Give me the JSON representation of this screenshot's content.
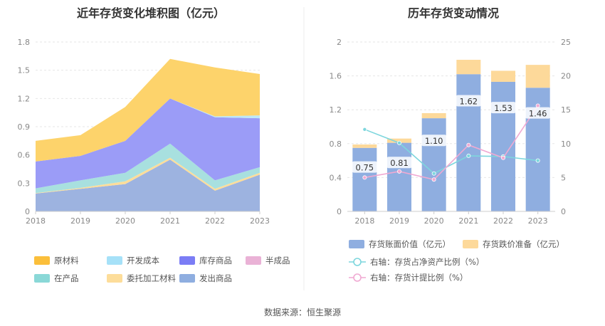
{
  "source": "数据来源：恒生聚源",
  "chart_data": [
    {
      "type": "area",
      "stacked": true,
      "title": "近年存货变化堆积图（亿元）",
      "categories": [
        "2018",
        "2019",
        "2020",
        "2021",
        "2022",
        "2023"
      ],
      "y_ticks": [
        "0",
        "0.3",
        "0.6",
        "0.9",
        "1.2",
        "1.5",
        "1.8"
      ],
      "ylim": [
        0,
        1.8
      ],
      "grid": "horizontal dashed",
      "legend_position": "bottom",
      "series": [
        {
          "name": "发出商品",
          "color": "#9db3e0",
          "values": [
            0.19,
            0.24,
            0.29,
            0.55,
            0.22,
            0.39
          ]
        },
        {
          "name": "委托加工材料",
          "color": "#fddd9a",
          "values": [
            0.005,
            0.01,
            0.03,
            0.02,
            0.02,
            0.02
          ]
        },
        {
          "name": "在产品",
          "color": "#a8e0df",
          "values": [
            0.05,
            0.08,
            0.09,
            0.15,
            0.09,
            0.06
          ]
        },
        {
          "name": "半成品",
          "color": "#f3b9dc",
          "values": [
            0.0,
            0.0,
            0.0,
            0.0,
            0.0,
            0.0
          ]
        },
        {
          "name": "库存商品",
          "color": "#9b9cf7",
          "values": [
            0.285,
            0.26,
            0.34,
            0.48,
            0.67,
            0.52
          ]
        },
        {
          "name": "开发成本",
          "color": "#bde8f7",
          "values": [
            0.0,
            0.0,
            0.0,
            0.0,
            0.01,
            0.03
          ]
        },
        {
          "name": "原材料",
          "color": "#fdd36b",
          "values": [
            0.22,
            0.22,
            0.36,
            0.42,
            0.52,
            0.44
          ]
        }
      ],
      "legend": [
        {
          "name": "原材料",
          "color": "#fbbf3b"
        },
        {
          "name": "开发成本",
          "color": "#a6e1f8"
        },
        {
          "name": "库存商品",
          "color": "#7b7df5"
        },
        {
          "name": "半成品",
          "color": "#eab2d6"
        },
        {
          "name": "在产品",
          "color": "#8ad8d7"
        },
        {
          "name": "委托加工材料",
          "color": "#fddd9a"
        },
        {
          "name": "发出商品",
          "color": "#8faee0"
        }
      ]
    },
    {
      "type": "bar",
      "stacked": true,
      "title": "历年存货变动情况",
      "categories": [
        "2018",
        "2019",
        "2020",
        "2021",
        "2022",
        "2023"
      ],
      "y_ticks_left": [
        "0",
        "0.4",
        "0.8",
        "1.2",
        "1.6",
        "2"
      ],
      "y_ticks_right": [
        "0",
        "5",
        "10",
        "15",
        "20",
        "25"
      ],
      "ylim_left": [
        0,
        2
      ],
      "ylim_right": [
        0,
        25
      ],
      "grid": "horizontal dashed",
      "legend_position": "bottom",
      "series": [
        {
          "name": "存货账面价值（亿元）",
          "color": "#8faee0",
          "values": [
            0.75,
            0.81,
            1.1,
            1.62,
            1.53,
            1.46
          ],
          "labels": [
            "0.75",
            "0.81",
            "1.10",
            "1.62",
            "1.53",
            "1.46"
          ]
        },
        {
          "name": "存货跌价准备（亿元）",
          "color": "#fdd99a",
          "values": [
            0.04,
            0.05,
            0.06,
            0.17,
            0.13,
            0.27
          ]
        }
      ],
      "lines": [
        {
          "name": "右轴：存货占净资产比例（%）",
          "color": "#7dd6dd",
          "axis": "right",
          "values": [
            12.1,
            10.1,
            5.6,
            8.2,
            8.1,
            7.5
          ]
        },
        {
          "name": "右轴：存货计提比例（%）",
          "color": "#f0a9d2",
          "axis": "right",
          "values": [
            5.0,
            5.9,
            4.7,
            9.8,
            7.9,
            15.6
          ]
        }
      ]
    }
  ]
}
